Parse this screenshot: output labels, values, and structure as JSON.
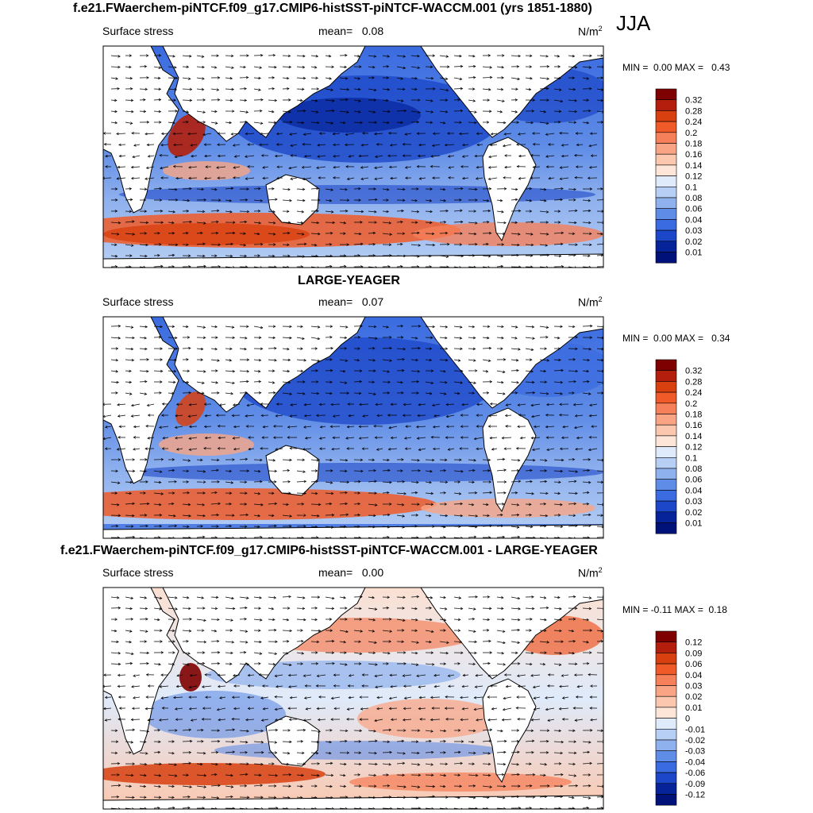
{
  "season": "JJA",
  "colors": {
    "ocean_light": "#cfe1f7",
    "land": "#ffffff",
    "coast": "#000000"
  },
  "panels": [
    {
      "title": "f.e21.FWaerchem-piNTCF.f09_g17.CMIP6-histSST-piNTCF-WACCM.001 (yrs 1851-1880)",
      "variable": "Surface stress",
      "mean_label": "mean=",
      "mean_value": "0.08",
      "units": "N/m",
      "units_sup": "2",
      "min_label": "MIN =",
      "min_value": "0.00",
      "max_label": "MAX =",
      "max_value": "0.43",
      "colorbar": [
        "0.32",
        "0.28",
        "0.24",
        "0.2",
        "0.18",
        "0.16",
        "0.14",
        "0.12",
        "0.1",
        "0.08",
        "0.06",
        "0.04",
        "0.03",
        "0.02",
        "0.01"
      ],
      "colorbar_colors": [
        "#7f0000",
        "#b31f0c",
        "#d8400f",
        "#f05a28",
        "#f5805a",
        "#f9a585",
        "#fbc7ae",
        "#fde6d8",
        "#dfeafa",
        "#b7cff4",
        "#8fb1ee",
        "#5f8ce6",
        "#3a6be0",
        "#1c47c8",
        "#06239a",
        "#00127a"
      ],
      "chart_data": {
        "type": "heatmap",
        "title": "f.e21.FWaerchem-piNTCF.f09_g17.CMIP6-histSST-piNTCF-WACCM.001 (yrs 1851-1880)",
        "variable": "Surface stress",
        "units": "N/m2",
        "mean": 0.08,
        "min": 0.0,
        "max": 0.43,
        "levels": [
          0.01,
          0.02,
          0.03,
          0.04,
          0.06,
          0.08,
          0.1,
          0.12,
          0.14,
          0.16,
          0.18,
          0.2,
          0.24,
          0.28,
          0.32
        ]
      }
    },
    {
      "title": "LARGE-YEAGER",
      "variable": "Surface stress",
      "mean_label": "mean=",
      "mean_value": "0.07",
      "units": "N/m",
      "units_sup": "2",
      "min_label": "MIN =",
      "min_value": "0.00",
      "max_label": "MAX =",
      "max_value": "0.34",
      "colorbar": [
        "0.32",
        "0.28",
        "0.24",
        "0.2",
        "0.18",
        "0.16",
        "0.14",
        "0.12",
        "0.1",
        "0.08",
        "0.06",
        "0.04",
        "0.03",
        "0.02",
        "0.01"
      ],
      "colorbar_colors": [
        "#7f0000",
        "#b31f0c",
        "#d8400f",
        "#f05a28",
        "#f5805a",
        "#f9a585",
        "#fbc7ae",
        "#fde6d8",
        "#dfeafa",
        "#b7cff4",
        "#8fb1ee",
        "#5f8ce6",
        "#3a6be0",
        "#1c47c8",
        "#06239a",
        "#00127a"
      ],
      "chart_data": {
        "type": "heatmap",
        "title": "LARGE-YEAGER",
        "variable": "Surface stress",
        "units": "N/m2",
        "mean": 0.07,
        "min": 0.0,
        "max": 0.34,
        "levels": [
          0.01,
          0.02,
          0.03,
          0.04,
          0.06,
          0.08,
          0.1,
          0.12,
          0.14,
          0.16,
          0.18,
          0.2,
          0.24,
          0.28,
          0.32
        ]
      }
    },
    {
      "title": "f.e21.FWaerchem-piNTCF.f09_g17.CMIP6-histSST-piNTCF-WACCM.001 - LARGE-YEAGER",
      "variable": "Surface stress",
      "mean_label": "mean=",
      "mean_value": "0.00",
      "units": "N/m",
      "units_sup": "2",
      "min_label": "MIN =",
      "min_value": "-0.11",
      "max_label": "MAX =",
      "max_value": "0.18",
      "colorbar": [
        "0.12",
        "0.09",
        "0.06",
        "0.04",
        "0.03",
        "0.02",
        "0.01",
        "0",
        "-0.01",
        "-0.02",
        "-0.03",
        "-0.04",
        "-0.06",
        "-0.09",
        "-0.12"
      ],
      "colorbar_colors": [
        "#7f0000",
        "#b31f0c",
        "#d8400f",
        "#f05a28",
        "#f5805a",
        "#f9a585",
        "#fbc7ae",
        "#fde6d8",
        "#dfeafa",
        "#b7cff4",
        "#8fb1ee",
        "#5f8ce6",
        "#3a6be0",
        "#1c47c8",
        "#06239a",
        "#00127a"
      ],
      "chart_data": {
        "type": "heatmap",
        "title": "f.e21.FWaerchem-piNTCF.f09_g17.CMIP6-histSST-piNTCF-WACCM.001 - LARGE-YEAGER",
        "variable": "Surface stress",
        "units": "N/m2",
        "mean": 0.0,
        "min": -0.11,
        "max": 0.18,
        "levels": [
          -0.12,
          -0.09,
          -0.06,
          -0.04,
          -0.03,
          -0.02,
          -0.01,
          0,
          0.01,
          0.02,
          0.03,
          0.04,
          0.06,
          0.09,
          0.12
        ]
      }
    }
  ]
}
